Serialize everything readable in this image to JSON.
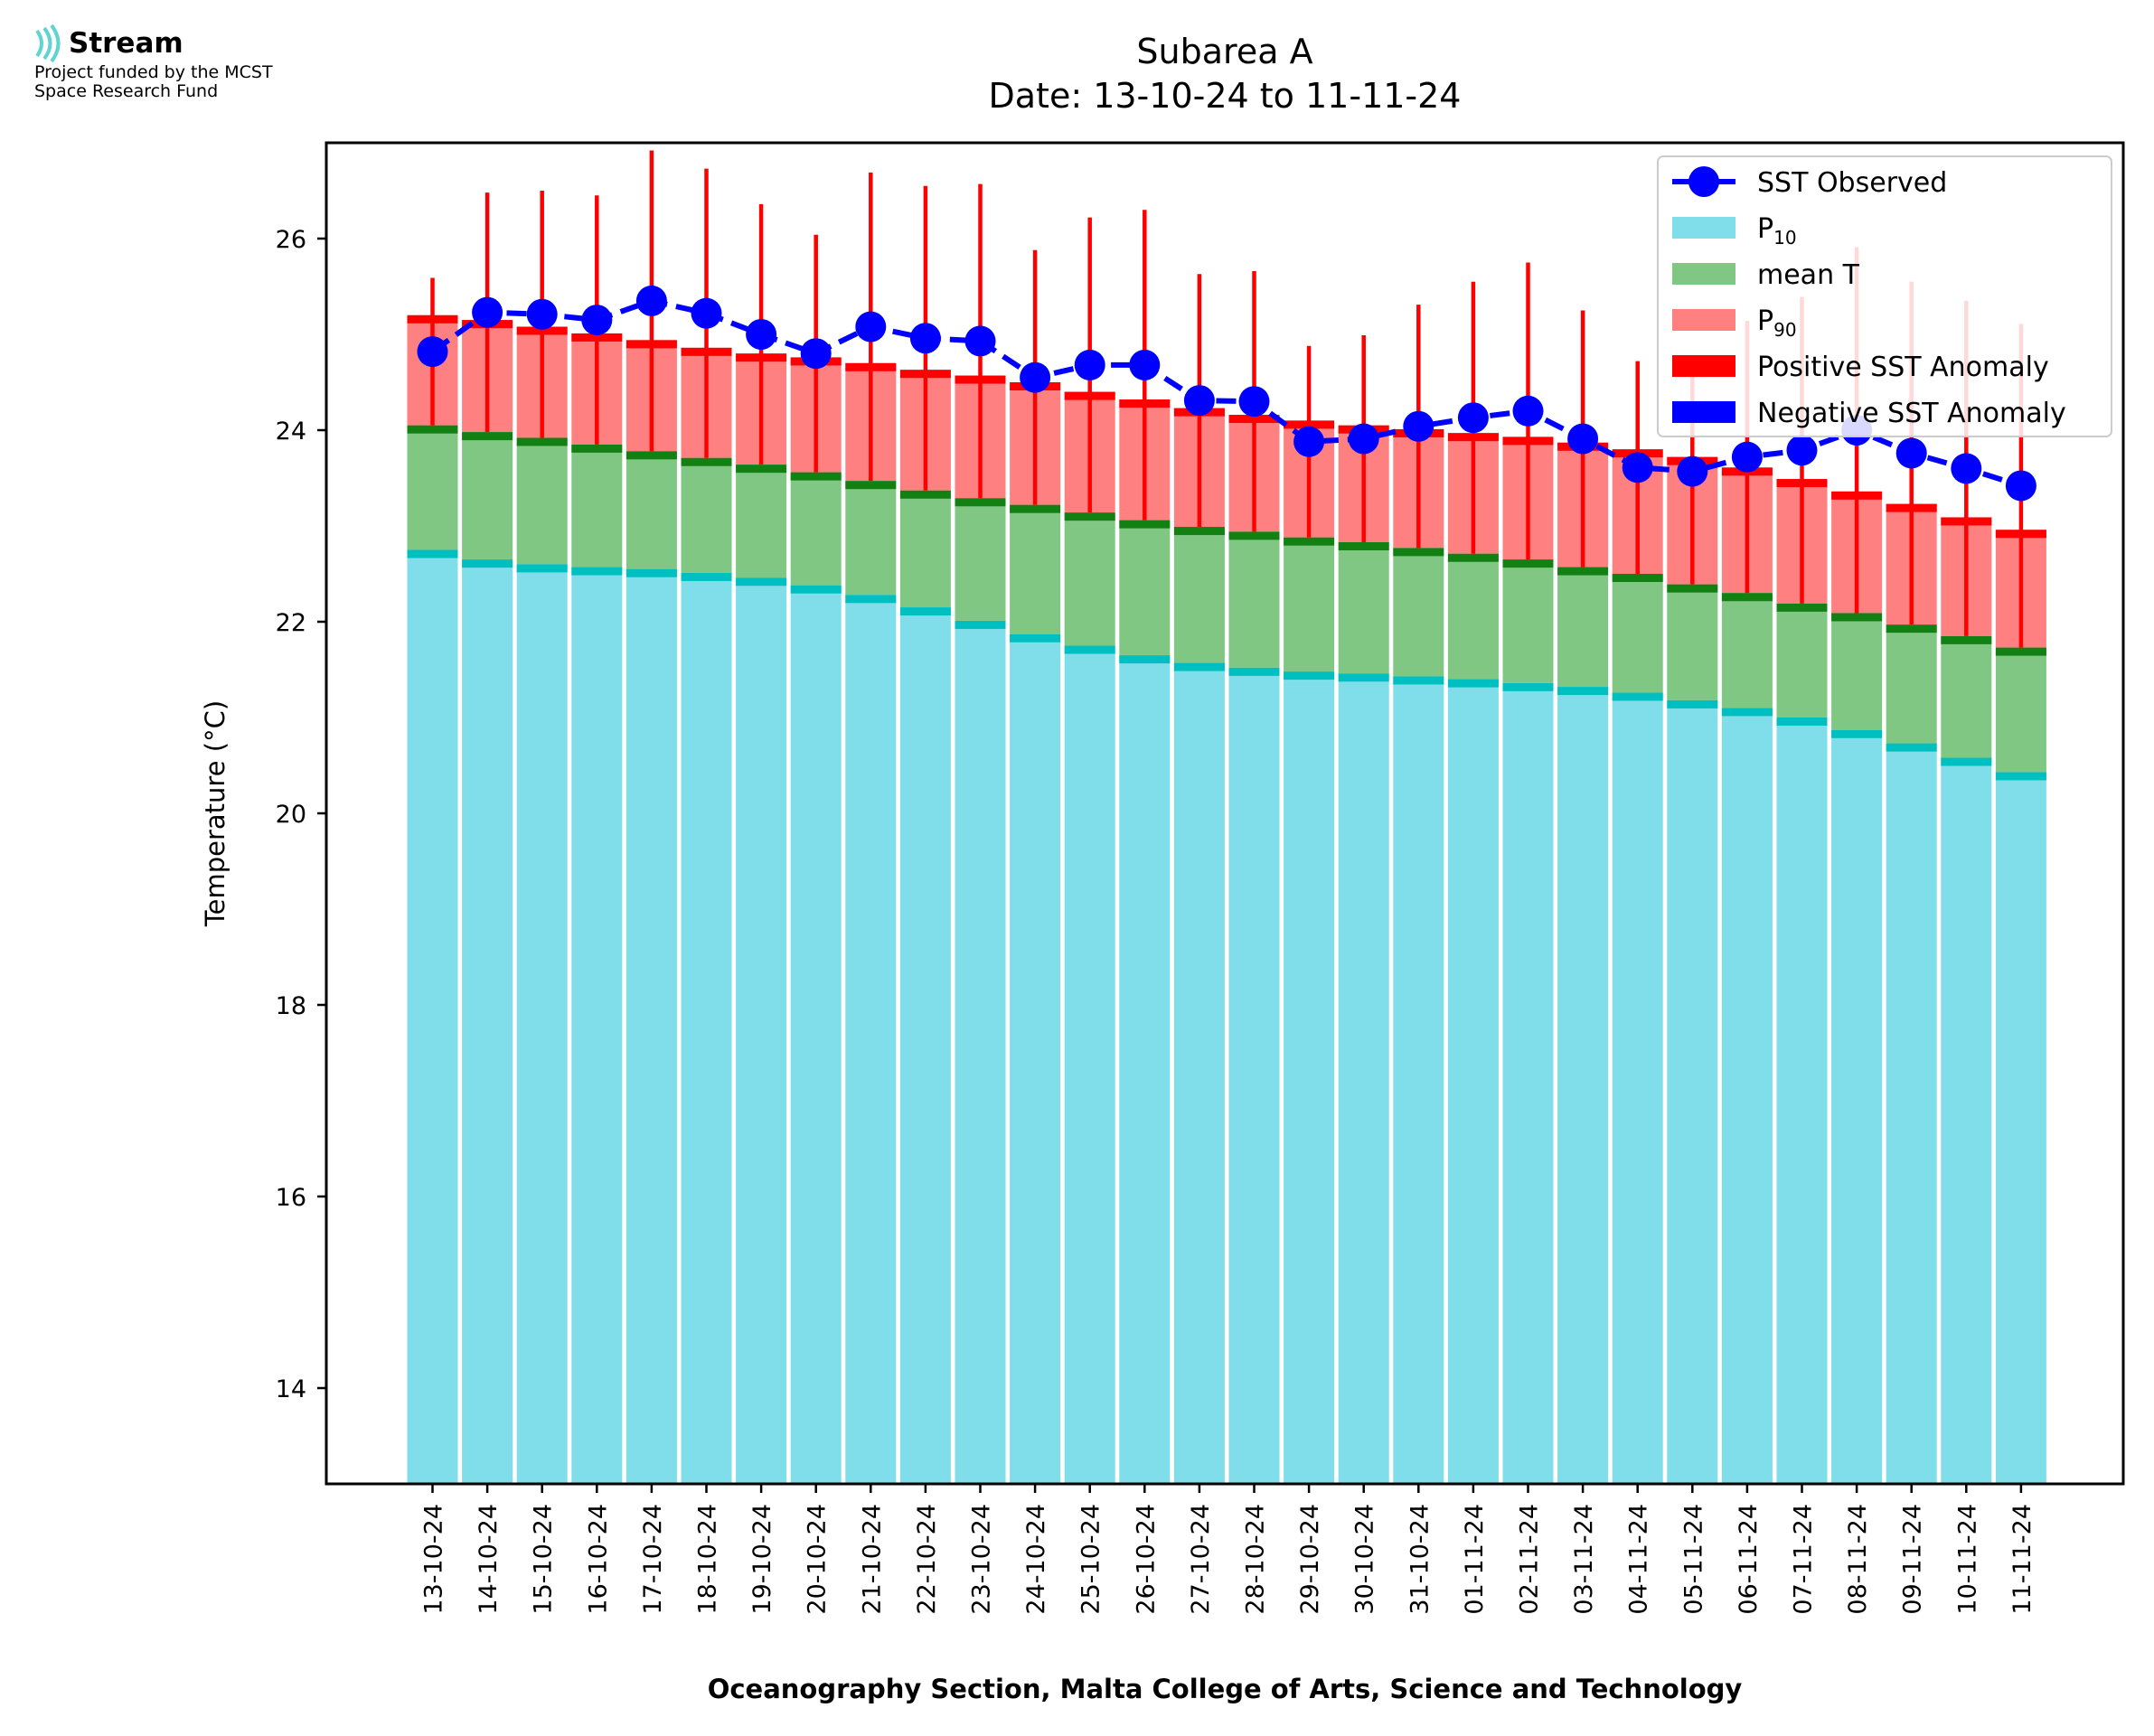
{
  "logo": {
    "name": "Stream",
    "credit_line1": "Project funded by the MCST",
    "credit_line2": "Space Research Fund"
  },
  "chart_data": {
    "type": "bar",
    "title": "Subarea A",
    "subtitle": "Date: 13-10-24 to 11-11-24",
    "xlabel": "Oceanography Section, Malta College of Arts, Science and Technology",
    "ylabel": "Temperature (°C)",
    "ylim": [
      13,
      27
    ],
    "yticks": [
      14,
      16,
      18,
      20,
      22,
      24,
      26
    ],
    "grid": false,
    "legend_position": "top-right",
    "legend": [
      {
        "key": "sst",
        "label": "SST Observed",
        "color": "#0000ff",
        "kind": "line-marker"
      },
      {
        "key": "p10",
        "label": "P",
        "sub": "10",
        "color": "#80deea",
        "kind": "patch"
      },
      {
        "key": "mean",
        "label": "mean T",
        "color": "#81c784",
        "kind": "patch"
      },
      {
        "key": "p90",
        "label": "P",
        "sub": "90",
        "color": "#ff8080",
        "kind": "patch"
      },
      {
        "key": "pos",
        "label": "Positive SST Anomaly",
        "color": "#ff0000",
        "kind": "patch"
      },
      {
        "key": "neg",
        "label": "Negative SST Anomaly",
        "color": "#0000ff",
        "kind": "patch"
      }
    ],
    "categories": [
      "13-10-24",
      "14-10-24",
      "15-10-24",
      "16-10-24",
      "17-10-24",
      "18-10-24",
      "19-10-24",
      "20-10-24",
      "21-10-24",
      "22-10-24",
      "23-10-24",
      "24-10-24",
      "25-10-24",
      "26-10-24",
      "27-10-24",
      "28-10-24",
      "29-10-24",
      "30-10-24",
      "31-10-24",
      "01-11-24",
      "02-11-24",
      "03-11-24",
      "04-11-24",
      "05-11-24",
      "06-11-24",
      "07-11-24",
      "08-11-24",
      "09-11-24",
      "10-11-24",
      "11-11-24"
    ],
    "series": [
      {
        "name": "P10",
        "values": [
          22.75,
          22.65,
          22.6,
          22.57,
          22.55,
          22.51,
          22.46,
          22.38,
          22.28,
          22.15,
          22.01,
          21.87,
          21.75,
          21.65,
          21.57,
          21.52,
          21.48,
          21.46,
          21.43,
          21.4,
          21.36,
          21.32,
          21.26,
          21.18,
          21.1,
          21.0,
          20.87,
          20.73,
          20.58,
          20.43
        ]
      },
      {
        "name": "mean T",
        "values": [
          24.05,
          23.98,
          23.92,
          23.85,
          23.78,
          23.71,
          23.64,
          23.56,
          23.47,
          23.37,
          23.29,
          23.22,
          23.14,
          23.06,
          22.99,
          22.94,
          22.88,
          22.83,
          22.77,
          22.71,
          22.65,
          22.57,
          22.5,
          22.39,
          22.3,
          22.19,
          22.09,
          21.97,
          21.85,
          21.73
        ]
      },
      {
        "name": "P90",
        "values": [
          25.2,
          25.15,
          25.08,
          25.01,
          24.94,
          24.86,
          24.8,
          24.76,
          24.7,
          24.63,
          24.57,
          24.5,
          24.4,
          24.32,
          24.23,
          24.16,
          24.1,
          24.05,
          24.01,
          23.97,
          23.93,
          23.87,
          23.8,
          23.72,
          23.61,
          23.49,
          23.36,
          23.23,
          23.09,
          22.96
        ]
      },
      {
        "name": "SST Observed",
        "values": [
          24.82,
          25.23,
          25.21,
          25.15,
          25.35,
          25.22,
          25.0,
          24.8,
          25.08,
          24.96,
          24.93,
          24.55,
          24.68,
          24.68,
          24.31,
          24.3,
          23.88,
          23.91,
          24.04,
          24.13,
          24.2,
          23.91,
          23.61,
          23.57,
          23.72,
          23.79,
          24.0,
          23.76,
          23.6,
          23.42
        ]
      }
    ]
  }
}
